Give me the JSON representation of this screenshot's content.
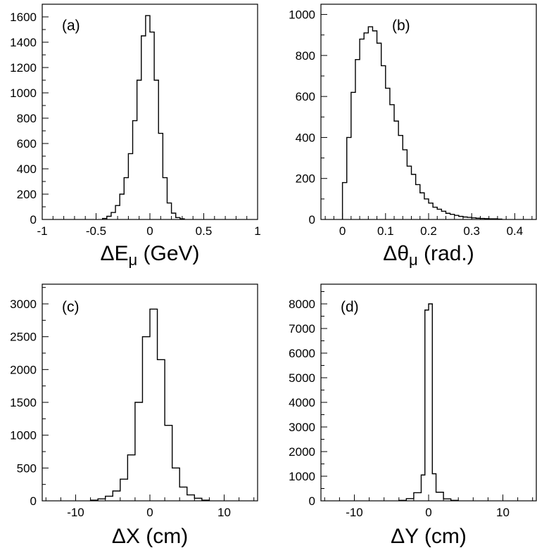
{
  "chart_data": [
    {
      "type": "histogram",
      "panel_label": "(a)",
      "xlabel": "ΔEμ (GeV)",
      "xlabel_main": "ΔE",
      "xlabel_sub": "μ",
      "xlabel_unit": " (GeV)",
      "xlim": [
        -1,
        1
      ],
      "ylim": [
        0,
        1700
      ],
      "xticks": [
        -1,
        -0.5,
        0,
        0.5,
        1
      ],
      "xtick_labels": [
        "-1",
        "-0.5",
        "0",
        "0.5",
        "1"
      ],
      "yticks": [
        0,
        200,
        400,
        600,
        800,
        1000,
        1200,
        1400,
        1600
      ],
      "ytick_labels": [
        "0",
        "200",
        "400",
        "600",
        "800",
        "1000",
        "1200",
        "1400",
        "1600"
      ],
      "bin_edges": [
        -0.44,
        -0.4,
        -0.36,
        -0.32,
        -0.28,
        -0.24,
        -0.2,
        -0.16,
        -0.12,
        -0.08,
        -0.04,
        0,
        0.04,
        0.08,
        0.12,
        0.16,
        0.2,
        0.24,
        0.28,
        0.32
      ],
      "values": [
        8,
        25,
        55,
        110,
        200,
        330,
        520,
        780,
        1100,
        1450,
        1610,
        1480,
        1100,
        680,
        330,
        130,
        50,
        15,
        5
      ]
    },
    {
      "type": "histogram",
      "panel_label": "(b)",
      "xlabel": "Δθμ (rad.)",
      "xlabel_main": "Δθ",
      "xlabel_sub": "μ",
      "xlabel_unit": " (rad.)",
      "xlim": [
        -0.05,
        0.45
      ],
      "ylim": [
        0,
        1050
      ],
      "xticks": [
        0,
        0.1,
        0.2,
        0.3,
        0.4
      ],
      "xtick_labels": [
        "0",
        "0.1",
        "0.2",
        "0.3",
        "0.4"
      ],
      "yticks": [
        0,
        200,
        400,
        600,
        800,
        1000
      ],
      "ytick_labels": [
        "0",
        "200",
        "400",
        "600",
        "800",
        "1000"
      ],
      "bin_edges": [
        0,
        0.01,
        0.02,
        0.03,
        0.04,
        0.05,
        0.06,
        0.07,
        0.08,
        0.09,
        0.1,
        0.11,
        0.12,
        0.13,
        0.14,
        0.15,
        0.16,
        0.17,
        0.18,
        0.19,
        0.2,
        0.21,
        0.22,
        0.23,
        0.24,
        0.25,
        0.26,
        0.27,
        0.28,
        0.29,
        0.3,
        0.31,
        0.32,
        0.33,
        0.34,
        0.35,
        0.36,
        0.37
      ],
      "values": [
        180,
        400,
        620,
        780,
        880,
        910,
        940,
        920,
        860,
        750,
        640,
        560,
        480,
        410,
        340,
        260,
        220,
        170,
        130,
        100,
        80,
        60,
        50,
        40,
        30,
        25,
        20,
        15,
        12,
        10,
        8,
        6,
        5,
        4,
        3,
        3,
        2
      ]
    },
    {
      "type": "histogram",
      "panel_label": "(c)",
      "xlabel": "ΔX (cm)",
      "xlabel_main": "ΔX",
      "xlabel_sub": "",
      "xlabel_unit": " (cm)",
      "xlim": [
        -14.5,
        14.5
      ],
      "ylim": [
        0,
        3300
      ],
      "xticks": [
        -10,
        0,
        10
      ],
      "xtick_labels": [
        "-10",
        "0",
        "10"
      ],
      "yticks": [
        0,
        500,
        1000,
        1500,
        2000,
        2500,
        3000
      ],
      "ytick_labels": [
        "0",
        "500",
        "1000",
        "1500",
        "2000",
        "2500",
        "3000"
      ],
      "bin_edges": [
        -8,
        -7,
        -6,
        -5,
        -4,
        -3,
        -2,
        -1,
        0,
        1,
        2,
        3,
        4,
        5,
        6,
        7,
        8
      ],
      "values": [
        10,
        30,
        70,
        150,
        330,
        700,
        1500,
        2500,
        2920,
        2150,
        1150,
        500,
        210,
        90,
        40,
        10
      ]
    },
    {
      "type": "histogram",
      "panel_label": "(d)",
      "xlabel": "ΔY (cm)",
      "xlabel_main": "ΔY",
      "xlabel_sub": "",
      "xlabel_unit": " (cm)",
      "xlim": [
        -14.5,
        14.5
      ],
      "ylim": [
        0,
        8800
      ],
      "xticks": [
        -10,
        0,
        10
      ],
      "xtick_labels": [
        "-10",
        "0",
        "10"
      ],
      "yticks": [
        0,
        1000,
        2000,
        3000,
        4000,
        5000,
        6000,
        7000,
        8000
      ],
      "ytick_labels": [
        "0",
        "1000",
        "2000",
        "3000",
        "4000",
        "5000",
        "6000",
        "7000",
        "8000"
      ],
      "bin_edges": [
        -4,
        -3,
        -2,
        -1,
        -0.5,
        0,
        0.5,
        1,
        2,
        3,
        4
      ],
      "values": [
        20,
        90,
        330,
        1050,
        7750,
        8000,
        1100,
        350,
        80,
        20
      ]
    }
  ]
}
